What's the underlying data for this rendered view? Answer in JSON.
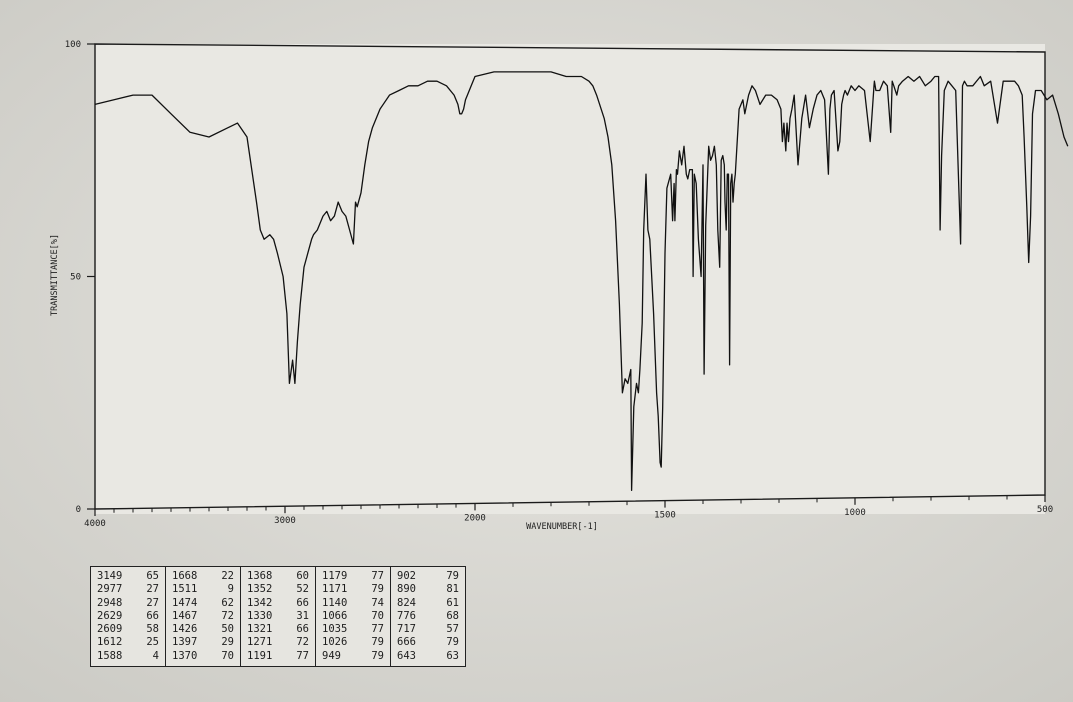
{
  "chart_data": {
    "type": "line",
    "ylabel": "TRANSMITTANCE[%]",
    "xlabel": "WAVENUMBER[-1]",
    "xlim": [
      4000,
      400
    ],
    "ylim": [
      0,
      100
    ],
    "x_ticks": [
      4000,
      3000,
      2000,
      1500,
      1000,
      500
    ],
    "x_tick_labels": [
      "4000",
      "3000",
      "2000",
      "1500",
      "1000",
      "500"
    ],
    "y_ticks": [
      0,
      50,
      100
    ],
    "y_tick_labels": [
      "0",
      "50",
      "100"
    ],
    "grid": false,
    "series": [
      {
        "x": [
          4000,
          3900,
          3800,
          3700,
          3600,
          3500,
          3400,
          3300,
          3250,
          3200,
          3150,
          3130,
          3110,
          3080,
          3060,
          3040,
          3010,
          2990,
          2977,
          2960,
          2948,
          2935,
          2920,
          2900,
          2880,
          2860,
          2850,
          2830,
          2800,
          2780,
          2760,
          2740,
          2720,
          2700,
          2680,
          2660,
          2640,
          2629,
          2620,
          2600,
          2580,
          2560,
          2540,
          2500,
          2450,
          2400,
          2350,
          2300,
          2250,
          2200,
          2150,
          2110,
          2090,
          2080,
          2070,
          2060,
          2050,
          2040,
          2020,
          2000,
          1950,
          1900,
          1850,
          1800,
          1760,
          1740,
          1720,
          1700,
          1690,
          1680,
          1660,
          1650,
          1640,
          1630,
          1620,
          1612,
          1605,
          1598,
          1590,
          1588,
          1582,
          1575,
          1570,
          1566,
          1560,
          1556,
          1550,
          1545,
          1540,
          1530,
          1522,
          1518,
          1513,
          1510,
          1506,
          1500,
          1495,
          1485,
          1480,
          1476,
          1474,
          1470,
          1467,
          1462,
          1456,
          1450,
          1444,
          1440,
          1435,
          1428,
          1426,
          1423,
          1418,
          1412,
          1405,
          1400,
          1397,
          1393,
          1385,
          1380,
          1375,
          1370,
          1365,
          1361,
          1356,
          1352,
          1348,
          1344,
          1342,
          1339,
          1336,
          1333,
          1330,
          1327,
          1324,
          1321,
          1318,
          1315,
          1305,
          1295,
          1290,
          1280,
          1271,
          1262,
          1250,
          1235,
          1220,
          1205,
          1195,
          1191,
          1187,
          1182,
          1179,
          1175,
          1171,
          1166,
          1160,
          1150,
          1140,
          1130,
          1120,
          1110,
          1100,
          1090,
          1080,
          1070,
          1066,
          1062,
          1055,
          1045,
          1040,
          1035,
          1030,
          1026,
          1020,
          1010,
          1000,
          990,
          975,
          960,
          950,
          949,
          945,
          935,
          925,
          915,
          906,
          902,
          898,
          890,
          885,
          875,
          860,
          845,
          830,
          815,
          800,
          790,
          780,
          776,
          772,
          765,
          755,
          745,
          735,
          722,
          717,
          712,
          705,
          690,
          670,
          660,
          643,
          625,
          610,
          595,
          580,
          570,
          560,
          555,
          548,
          543,
          538,
          533,
          525,
          510,
          495,
          480,
          465,
          450,
          440
        ],
        "y": [
          87,
          88,
          89,
          89,
          85,
          81,
          80,
          82,
          83,
          80,
          66,
          60,
          58,
          59,
          58,
          55,
          50,
          42,
          27,
          32,
          27,
          36,
          44,
          52,
          55,
          58,
          59,
          60,
          63,
          64,
          62,
          63,
          66,
          64,
          63,
          60,
          57,
          66,
          65,
          68,
          74,
          79,
          82,
          86,
          89,
          90,
          91,
          91,
          92,
          92,
          91,
          89,
          87,
          85,
          85,
          86,
          88,
          89,
          91,
          93,
          94,
          94,
          94,
          94,
          93,
          93,
          93,
          92,
          91,
          89,
          84,
          80,
          74,
          62,
          44,
          25,
          28,
          27,
          30,
          4,
          22,
          27,
          25,
          30,
          40,
          60,
          72,
          60,
          58,
          42,
          25,
          20,
          10,
          9,
          22,
          55,
          69,
          72,
          62,
          70,
          62,
          73,
          72,
          77,
          74,
          78,
          72,
          71,
          73,
          73,
          50,
          72,
          70,
          58,
          50,
          74,
          29,
          61,
          78,
          75,
          76,
          78,
          74,
          60,
          52,
          75,
          76,
          74,
          66,
          60,
          72,
          72,
          31,
          70,
          72,
          66,
          70,
          72,
          86,
          88,
          85,
          89,
          91,
          90,
          87,
          89,
          89,
          88,
          86,
          79,
          83,
          77,
          83,
          79,
          84,
          86,
          89,
          74,
          84,
          89,
          82,
          86,
          89,
          90,
          88,
          72,
          86,
          89,
          90,
          77,
          79,
          87,
          89,
          90,
          89,
          91,
          90,
          91,
          90,
          79,
          91,
          92,
          90,
          90,
          92,
          91,
          81,
          92,
          91,
          89,
          91,
          92,
          93,
          92,
          93,
          91,
          92,
          93,
          93,
          60,
          76,
          90,
          92,
          91,
          90,
          57,
          91,
          92,
          91,
          91,
          93,
          91,
          92,
          83,
          92,
          92,
          92,
          91,
          89,
          80,
          65,
          53,
          63,
          85,
          90,
          90,
          88,
          89,
          85,
          80,
          78
        ]
      }
    ],
    "peak_table": [
      [
        [
          "3149",
          "65"
        ],
        [
          "2977",
          "27"
        ],
        [
          "2948",
          "27"
        ],
        [
          "2629",
          "66"
        ],
        [
          "2609",
          "58"
        ],
        [
          "1612",
          "25"
        ],
        [
          "1588",
          "4"
        ]
      ],
      [
        [
          "1668",
          "22"
        ],
        [
          "1511",
          "9"
        ],
        [
          "1474",
          "62"
        ],
        [
          "1467",
          "72"
        ],
        [
          "1426",
          "50"
        ],
        [
          "1397",
          "29"
        ],
        [
          "1370",
          "70"
        ]
      ],
      [
        [
          "1368",
          "60"
        ],
        [
          "1352",
          "52"
        ],
        [
          "1342",
          "66"
        ],
        [
          "1330",
          "31"
        ],
        [
          "1321",
          "66"
        ],
        [
          "1271",
          "72"
        ],
        [
          "1191",
          "77"
        ]
      ],
      [
        [
          "1179",
          "77"
        ],
        [
          "1171",
          "79"
        ],
        [
          "1140",
          "74"
        ],
        [
          "1066",
          "70"
        ],
        [
          "1035",
          "77"
        ],
        [
          "1026",
          "79"
        ],
        [
          "949",
          "79"
        ]
      ],
      [
        [
          "902",
          "79"
        ],
        [
          "890",
          "81"
        ],
        [
          "824",
          "61"
        ],
        [
          "776",
          "68"
        ],
        [
          "717",
          "57"
        ],
        [
          "666",
          "79"
        ],
        [
          "643",
          "63"
        ]
      ]
    ]
  }
}
